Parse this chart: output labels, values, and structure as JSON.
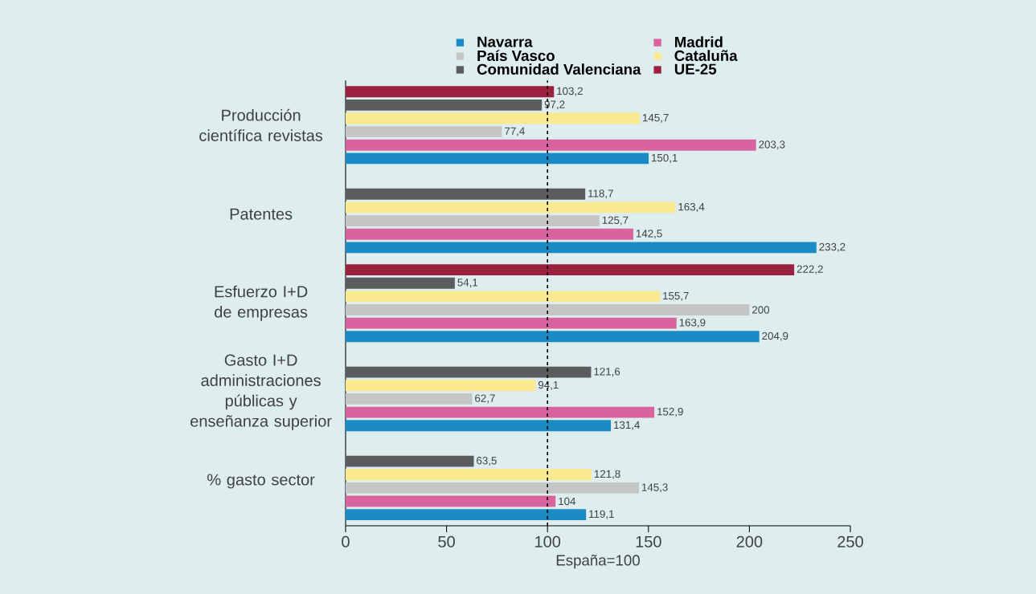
{
  "chart_data": {
    "type": "bar",
    "orientation": "horizontal",
    "xlabel": "España=100",
    "categories": [
      "Producción científica revistas",
      "Patentes",
      "Esfuerzo I+D de empresas",
      "Gasto I+D administraciones públicas y enseñanza superior",
      "% gasto sector"
    ],
    "series": [
      {
        "name": "Navarra",
        "color": "#1a8bc4",
        "values": [
          150.1,
          233.2,
          204.9,
          131.4,
          119.1
        ],
        "value_labels": [
          "150,1",
          "233,2",
          "204,9",
          "131,4",
          "119,1"
        ]
      },
      {
        "name": "Madrid",
        "color": "#d9639e",
        "values": [
          203.3,
          142.5,
          163.9,
          152.9,
          104
        ],
        "value_labels": [
          "203,3",
          "142,5",
          "163,9",
          "152,9",
          "104"
        ]
      },
      {
        "name": "País Vasco",
        "color": "#c4c6c6",
        "values": [
          77.4,
          125.7,
          200,
          62.7,
          145.3
        ],
        "value_labels": [
          "77,4",
          "125,7",
          "200",
          "62,7",
          "145,3"
        ]
      },
      {
        "name": "Cataluña",
        "color": "#fbe98f",
        "values": [
          145.7,
          163.4,
          155.7,
          94.1,
          121.8
        ],
        "value_labels": [
          "145,7",
          "163,4",
          "155,7",
          "94,1",
          "121,8"
        ]
      },
      {
        "name": "Comunidad Valenciana",
        "color": "#5a5c5e",
        "values": [
          97.2,
          118.7,
          54.1,
          121.6,
          63.5
        ],
        "value_labels": [
          "97,2",
          "118,7",
          "54,1",
          "121,6",
          "63,5"
        ]
      },
      {
        "name": "UE-25",
        "color": "#9c2140",
        "values": [
          103.2,
          null,
          222.2,
          null,
          null
        ],
        "value_labels": [
          "103,2",
          null,
          "222,2",
          null,
          null
        ]
      }
    ],
    "xlim": [
      0,
      250
    ],
    "xticks": [
      0,
      50,
      100,
      150,
      200,
      250
    ],
    "ref_lines": [
      {
        "axis": "x",
        "value": 100,
        "color": "#000000",
        "line_style": "dashed"
      }
    ],
    "legend": "top"
  }
}
